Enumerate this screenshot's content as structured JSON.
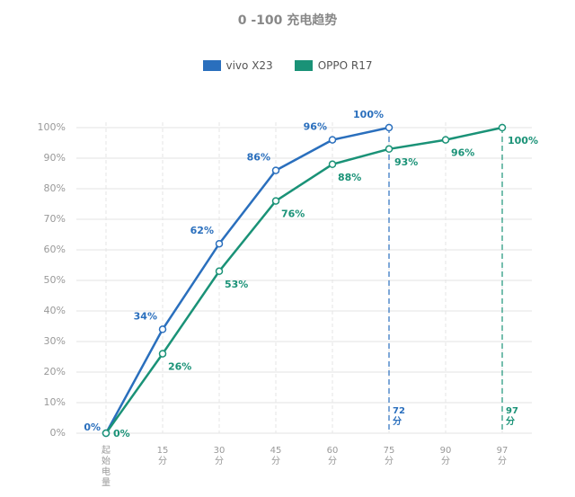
{
  "chart_data": {
    "type": "line",
    "title": "0 -100 充电趋势",
    "categories": [
      "起始电量",
      "15分",
      "30分",
      "45分",
      "60分",
      "75分",
      "90分",
      "97分"
    ],
    "series": [
      {
        "name": "vivo X23",
        "color": "#2a6fbd",
        "values": [
          0,
          34,
          62,
          86,
          96,
          100,
          null,
          null
        ],
        "value_labels": [
          "0%",
          "34%",
          "62%",
          "86%",
          "96%",
          "100%",
          null,
          null
        ]
      },
      {
        "name": "OPPO R17",
        "color": "#1a9277",
        "values": [
          0,
          26,
          53,
          76,
          88,
          93,
          96,
          100
        ],
        "value_labels": [
          "0%",
          "26%",
          "53%",
          "76%",
          "88%",
          "93%",
          "96%",
          "100%"
        ]
      }
    ],
    "annotations": [
      "72分",
      "97分"
    ],
    "ylim": [
      0,
      100
    ],
    "yticks": [
      {
        "value": 0,
        "label": "0%"
      },
      {
        "value": 10,
        "label": "10%"
      },
      {
        "value": 20,
        "label": "20%"
      },
      {
        "value": 30,
        "label": "30%"
      },
      {
        "value": 40,
        "label": "40%"
      },
      {
        "value": 50,
        "label": "50%"
      },
      {
        "value": 60,
        "label": "60%"
      },
      {
        "value": 70,
        "label": "70%"
      },
      {
        "value": 80,
        "label": "80%"
      },
      {
        "value": 90,
        "label": "90%"
      },
      {
        "value": 100,
        "label": "100%"
      }
    ],
    "grid": true
  }
}
